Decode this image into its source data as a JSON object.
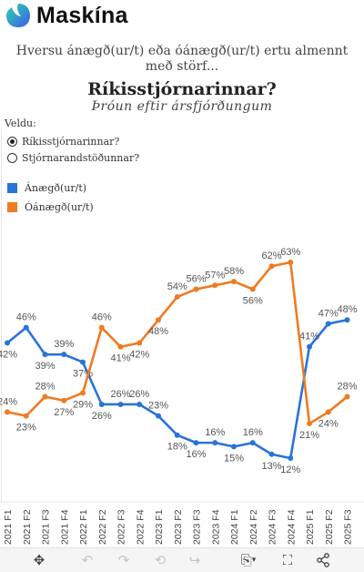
{
  "header": {
    "brand": "Maskína"
  },
  "question": "Hversu ánægð(ur/t) eða óánægð(ur/t) ertu almennt með störf...",
  "subject": "Ríkisstjórnarinnar?",
  "subtitle": "Þróun eftir ársfjórðungum",
  "selector": {
    "label": "Veldu:",
    "options": [
      {
        "label": "Ríkisstjórnarinnar?",
        "selected": true
      },
      {
        "label": "Stjórnarandstöðunnar?",
        "selected": false
      }
    ]
  },
  "legend": [
    {
      "label": "Ánægð(ur/t)",
      "color": "#2a73d9"
    },
    {
      "label": "Óánægð(ur/t)",
      "color": "#ef7b22"
    }
  ],
  "chart_data": {
    "type": "line",
    "x": [
      "2021 F1",
      "2021 F2",
      "2021 F3",
      "2021 F4",
      "2022 F1",
      "2022 F2",
      "2022 F3",
      "2022 F4",
      "2023 F1",
      "2023 F2",
      "2023 F3",
      "2023 F4",
      "2024 F1",
      "2024 F2",
      "2024 F3",
      "2024 F4",
      "2025 F1",
      "2025 F2",
      "2025 F3"
    ],
    "series": [
      {
        "name": "Ánægð(ur/t)",
        "color": "#2a73d9",
        "values": [
          42,
          46,
          39,
          39,
          37,
          26,
          26,
          26,
          23,
          18,
          16,
          16,
          15,
          16,
          13,
          12,
          41,
          47,
          48
        ]
      },
      {
        "name": "Óánægð(ur/t)",
        "color": "#ef7b22",
        "values": [
          24,
          23,
          28,
          27,
          29,
          46,
          41,
          42,
          48,
          54,
          56,
          57,
          58,
          56,
          62,
          63,
          21,
          24,
          28
        ]
      }
    ],
    "grid": false,
    "legend_position": "top-left"
  },
  "toolbar": {
    "icons": [
      "move-icon",
      "undo-icon",
      "redo-icon",
      "revert-icon",
      "forward-icon",
      "download-icon",
      "fullscreen-icon",
      "share-icon"
    ]
  }
}
